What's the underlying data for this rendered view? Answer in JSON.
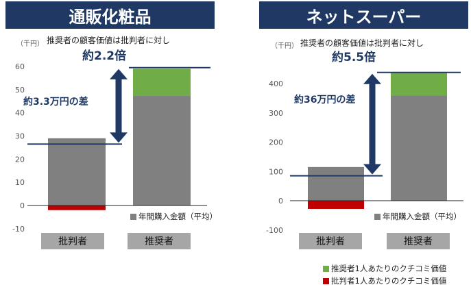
{
  "colors": {
    "navy": "#1f3864",
    "gray_bar": "#808080",
    "green": "#70ad47",
    "red": "#c00000",
    "label_bg": "#a6a6a6",
    "arrow": "#1f3864"
  },
  "legend": {
    "annual": "年間購入金額（平均）",
    "promoter_value": "推奨者1人あたりのクチコミ価値",
    "critic_value": "批判者1人あたりのクチコミ価値"
  },
  "chart_data": [
    {
      "type": "bar",
      "title": "通販化粧品",
      "unit_label": "（千円）",
      "subtitle": "推奨者の顧客価値は批判者に対し",
      "ratio_text": "約2.2倍",
      "diff_text": "約3.3万円の差",
      "categories": [
        "批判者",
        "推奨者"
      ],
      "ylim": [
        -10,
        65
      ],
      "yticks": [
        60,
        50,
        40,
        30,
        20,
        10,
        0,
        -10
      ],
      "stacked": true,
      "series": [
        {
          "name": "年間購入金額（平均）",
          "values": [
            29,
            47.5
          ]
        },
        {
          "name": "推奨者1人あたりのクチコミ価値",
          "values": [
            0,
            11.5
          ]
        },
        {
          "name": "批判者1人あたりのクチコミ価値",
          "values": [
            -2,
            0
          ]
        }
      ],
      "ref_levels": [
        26.5,
        59.5
      ]
    },
    {
      "type": "bar",
      "title": "ネットスーパー",
      "unit_label": "（千円）",
      "subtitle": "推奨者の顧客価値は批判者に対し",
      "ratio_text": "約5.5倍",
      "diff_text": "約36万円の差",
      "categories": [
        "批判者",
        "推奨者"
      ],
      "ylim": [
        -100,
        450
      ],
      "yticks": [
        400,
        300,
        200,
        100,
        0,
        -100
      ],
      "stacked": true,
      "series": [
        {
          "name": "年間購入金額（平均）",
          "values": [
            115,
            360
          ]
        },
        {
          "name": "推奨者1人あたりのクチコミ価値",
          "values": [
            0,
            78
          ]
        },
        {
          "name": "批判者1人あたりのクチコミ価値",
          "values": [
            -28,
            0
          ]
        }
      ],
      "ref_levels": [
        85,
        438
      ]
    }
  ]
}
